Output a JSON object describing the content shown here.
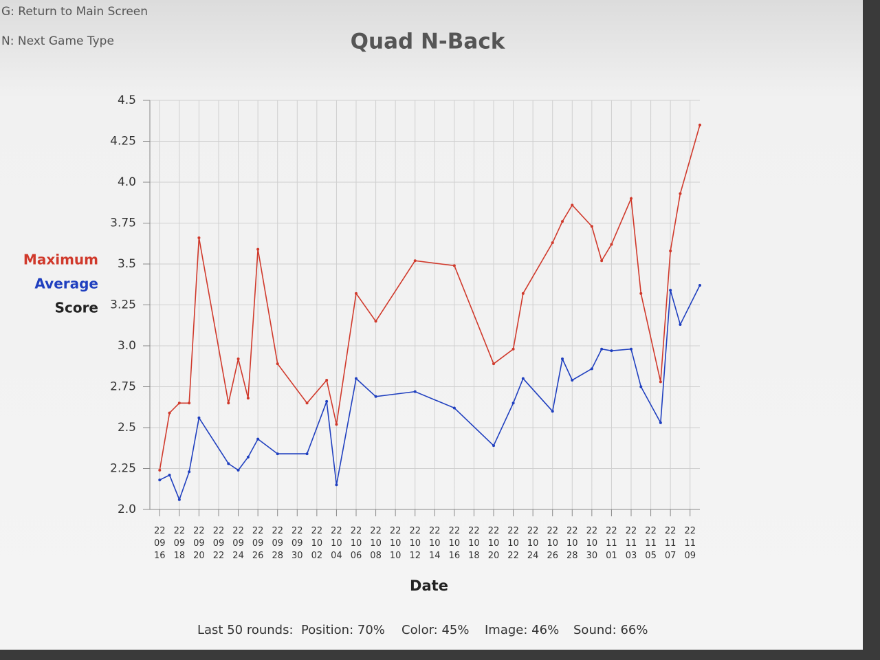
{
  "menu": [
    "G: Return to Main Screen",
    "N: Next Game Type"
  ],
  "chart_data": {
    "type": "line",
    "title": "Quad N-Back",
    "xlabel": "Date",
    "ylabel": "Score",
    "x": [
      "22 09 16",
      "22 09 17",
      "22 09 18",
      "22 09 19",
      "22 09 20",
      "22 09 23",
      "22 09 24",
      "22 09 25",
      "22 09 26",
      "22 09 28",
      "22 10 01",
      "22 10 03",
      "22 10 04",
      "22 10 06",
      "22 10 08",
      "22 10 12",
      "22 10 16",
      "22 10 20",
      "22 10 22",
      "22 10 23",
      "22 10 26",
      "22 10 27",
      "22 10 28",
      "22 10 30",
      "22 10 31",
      "22 11 01",
      "22 11 03",
      "22 11 04",
      "22 11 06",
      "22 11 07",
      "22 11 08",
      "22 11 10"
    ],
    "series": [
      {
        "name": "Maximum",
        "color": "#d0392b",
        "values": [
          2.24,
          2.59,
          2.65,
          2.65,
          3.66,
          2.65,
          2.92,
          2.68,
          3.59,
          2.89,
          2.65,
          2.79,
          2.52,
          3.32,
          3.15,
          3.52,
          3.49,
          2.89,
          2.98,
          3.32,
          3.63,
          3.76,
          3.86,
          3.73,
          3.52,
          3.62,
          3.9,
          3.32,
          2.78,
          3.58,
          3.93,
          4.35
        ]
      },
      {
        "name": "Average",
        "color": "#1f3fbf",
        "values": [
          2.18,
          2.21,
          2.06,
          2.23,
          2.56,
          2.28,
          2.24,
          2.32,
          2.43,
          2.34,
          2.34,
          2.66,
          2.15,
          2.8,
          2.69,
          2.72,
          2.62,
          2.39,
          2.65,
          2.8,
          2.6,
          2.92,
          2.79,
          2.86,
          2.98,
          2.97,
          2.98,
          2.75,
          2.53,
          3.34,
          3.13,
          3.37
        ]
      }
    ],
    "xlim": [
      "22 09 15",
      "22 11 10"
    ],
    "xticks": [
      [
        "22",
        "09",
        "16"
      ],
      [
        "22",
        "09",
        "18"
      ],
      [
        "22",
        "09",
        "20"
      ],
      [
        "22",
        "09",
        "22"
      ],
      [
        "22",
        "09",
        "24"
      ],
      [
        "22",
        "09",
        "26"
      ],
      [
        "22",
        "09",
        "28"
      ],
      [
        "22",
        "09",
        "30"
      ],
      [
        "22",
        "10",
        "02"
      ],
      [
        "22",
        "10",
        "04"
      ],
      [
        "22",
        "10",
        "06"
      ],
      [
        "22",
        "10",
        "08"
      ],
      [
        "22",
        "10",
        "10"
      ],
      [
        "22",
        "10",
        "12"
      ],
      [
        "22",
        "10",
        "14"
      ],
      [
        "22",
        "10",
        "16"
      ],
      [
        "22",
        "10",
        "18"
      ],
      [
        "22",
        "10",
        "20"
      ],
      [
        "22",
        "10",
        "22"
      ],
      [
        "22",
        "10",
        "24"
      ],
      [
        "22",
        "10",
        "26"
      ],
      [
        "22",
        "10",
        "28"
      ],
      [
        "22",
        "10",
        "30"
      ],
      [
        "22",
        "11",
        "01"
      ],
      [
        "22",
        "11",
        "03"
      ],
      [
        "22",
        "11",
        "05"
      ],
      [
        "22",
        "11",
        "07"
      ],
      [
        "22",
        "11",
        "09"
      ]
    ],
    "ylim": [
      2,
      4.5
    ],
    "yticks": [
      {
        "value": 2,
        "label": "2.0"
      },
      2.25,
      2.5,
      2.75,
      {
        "value": 3,
        "label": "3.0"
      },
      3.25,
      3.5,
      3.75,
      {
        "value": 4,
        "label": "4.0"
      },
      4.25,
      4.5
    ],
    "grid": true
  },
  "stats": [
    "Last 50 rounds:",
    "Position: 70%",
    "Color: 45%",
    "Image: 46%",
    "Sound: 66%"
  ]
}
